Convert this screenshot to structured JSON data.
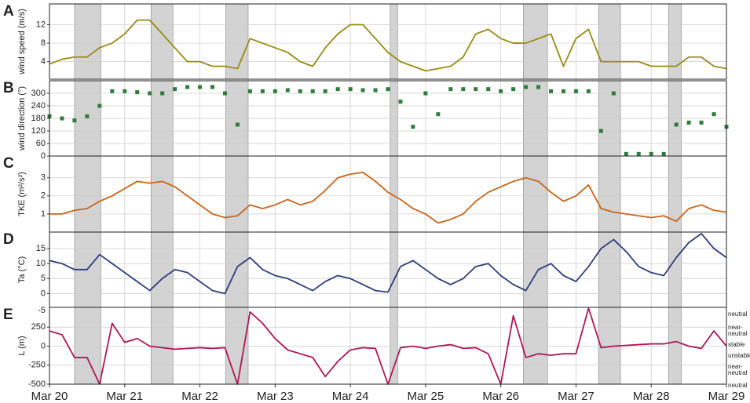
{
  "chart_data": [
    {
      "type": "line",
      "label": "A",
      "ylabel": "wind speed (m/s)",
      "color": "#9a8a14",
      "ylim": [
        0.2,
        16.5
      ],
      "yticks": [
        4,
        8,
        12
      ],
      "grid": true,
      "xlim": [
        0,
        216
      ],
      "shaded": [
        [
          8,
          16.4
        ],
        [
          32.4,
          39.4
        ],
        [
          56.2,
          63.4
        ],
        [
          108.7,
          111.1
        ],
        [
          151.2,
          158.9
        ],
        [
          175.2,
          182.2
        ],
        [
          197.5,
          201.6
        ]
      ],
      "x": [
        0,
        4,
        8,
        12,
        16,
        20,
        24,
        28,
        32,
        36,
        40,
        44,
        48,
        52,
        56,
        60,
        64,
        68,
        72,
        76,
        80,
        84,
        88,
        92,
        96,
        100,
        104,
        108,
        112,
        116,
        120,
        124,
        128,
        132,
        136,
        140,
        144,
        148,
        152,
        156,
        160,
        164,
        168,
        172,
        176,
        180,
        184,
        188,
        192,
        196,
        200,
        204,
        208,
        212,
        216
      ],
      "values": [
        3.5,
        4.5,
        5,
        5,
        7,
        8,
        10,
        13,
        13,
        10,
        7,
        4,
        4,
        3,
        3,
        2.5,
        9,
        8,
        7,
        6,
        4,
        3,
        7,
        10,
        12,
        12,
        9,
        6,
        4,
        3,
        2,
        2.5,
        3,
        5,
        10,
        11,
        9,
        8,
        8,
        9,
        10,
        3,
        9,
        11,
        4,
        4,
        4,
        4,
        3,
        3,
        3,
        5,
        5,
        3,
        2.5
      ]
    },
    {
      "type": "scatter",
      "label": "B",
      "ylabel": "wind direction (°)",
      "color": "#2e7d3a",
      "ylim": [
        0,
        360
      ],
      "yticks": [
        0,
        60,
        120,
        180,
        240,
        300
      ],
      "grid": true,
      "xlim": [
        0,
        216
      ],
      "shaded": [
        [
          8,
          16.4
        ],
        [
          32.4,
          39.4
        ],
        [
          56.2,
          63.4
        ],
        [
          108.7,
          111.1
        ],
        [
          151.2,
          158.9
        ],
        [
          175.2,
          182.2
        ],
        [
          197.5,
          201.6
        ]
      ],
      "x": [
        0,
        4,
        8,
        12,
        16,
        20,
        24,
        28,
        32,
        36,
        40,
        44,
        48,
        52,
        56,
        60,
        64,
        68,
        72,
        76,
        80,
        84,
        88,
        92,
        96,
        100,
        104,
        108,
        112,
        116,
        120,
        124,
        128,
        132,
        136,
        140,
        144,
        148,
        152,
        156,
        160,
        164,
        168,
        172,
        176,
        180,
        184,
        188,
        192,
        196,
        200,
        204,
        208,
        212,
        216
      ],
      "values": [
        190,
        180,
        170,
        190,
        240,
        310,
        310,
        305,
        300,
        300,
        320,
        330,
        330,
        330,
        300,
        150,
        310,
        310,
        310,
        315,
        310,
        310,
        310,
        320,
        320,
        315,
        315,
        320,
        260,
        140,
        300,
        200,
        320,
        320,
        320,
        320,
        310,
        320,
        330,
        330,
        310,
        310,
        310,
        310,
        120,
        300,
        10,
        10,
        10,
        10,
        150,
        160,
        160,
        200,
        140
      ]
    },
    {
      "type": "line",
      "label": "C",
      "ylabel": "TKE (m²/s²)",
      "color": "#c8651b",
      "ylim": [
        0,
        4.2
      ],
      "yticks": [
        1,
        2,
        3
      ],
      "grid": true,
      "xlim": [
        0,
        216
      ],
      "shaded": [
        [
          8,
          16.4
        ],
        [
          32.4,
          39.4
        ],
        [
          56.2,
          63.4
        ],
        [
          108.7,
          111.1
        ],
        [
          151.2,
          158.9
        ],
        [
          175.2,
          182.2
        ],
        [
          197.5,
          201.6
        ]
      ],
      "x": [
        0,
        4,
        8,
        12,
        16,
        20,
        24,
        28,
        32,
        36,
        40,
        44,
        48,
        52,
        56,
        60,
        64,
        68,
        72,
        76,
        80,
        84,
        88,
        92,
        96,
        100,
        104,
        108,
        112,
        116,
        120,
        124,
        128,
        132,
        136,
        140,
        144,
        148,
        152,
        156,
        160,
        164,
        168,
        172,
        176,
        180,
        184,
        188,
        192,
        196,
        200,
        204,
        208,
        212,
        216
      ],
      "values": [
        1,
        1,
        1.2,
        1.3,
        1.7,
        2,
        2.4,
        2.8,
        2.7,
        2.8,
        2.5,
        2,
        1.5,
        1,
        0.8,
        0.9,
        1.5,
        1.3,
        1.5,
        1.8,
        1.5,
        1.7,
        2.3,
        3,
        3.2,
        3.3,
        2.8,
        2.2,
        1.8,
        1.3,
        1,
        0.5,
        0.7,
        1,
        1.7,
        2.2,
        2.5,
        2.8,
        3,
        2.8,
        2.2,
        1.7,
        2,
        2.6,
        1.3,
        1.1,
        1,
        0.9,
        0.8,
        0.9,
        0.6,
        1.3,
        1.5,
        1.2,
        1.1
      ]
    },
    {
      "type": "line",
      "label": "D",
      "ylabel": "Ta (°C)",
      "color": "#2e3d7c",
      "ylim": [
        -4.6,
        20.5
      ],
      "yticks": [
        0,
        5,
        10,
        15
      ],
      "grid": true,
      "xlim": [
        0,
        216
      ],
      "shaded": [
        [
          8,
          16.4
        ],
        [
          32.4,
          39.4
        ],
        [
          56.2,
          63.4
        ],
        [
          108.7,
          111.1
        ],
        [
          151.2,
          158.9
        ],
        [
          175.2,
          182.2
        ],
        [
          197.5,
          201.6
        ]
      ],
      "x": [
        0,
        4,
        8,
        12,
        16,
        20,
        24,
        28,
        32,
        36,
        40,
        44,
        48,
        52,
        56,
        60,
        64,
        68,
        72,
        76,
        80,
        84,
        88,
        92,
        96,
        100,
        104,
        108,
        112,
        116,
        120,
        124,
        128,
        132,
        136,
        140,
        144,
        148,
        152,
        156,
        160,
        164,
        168,
        172,
        176,
        180,
        184,
        188,
        192,
        196,
        200,
        204,
        208,
        212,
        216
      ],
      "values": [
        11,
        10,
        8,
        8,
        13,
        10,
        7,
        4,
        1,
        5,
        8,
        7,
        4,
        1,
        0,
        9,
        12,
        8,
        6,
        5,
        3,
        1,
        4,
        6,
        5,
        3,
        1,
        0.5,
        9,
        11,
        8,
        5,
        3,
        5,
        9,
        10,
        6,
        3,
        1,
        8,
        10,
        6,
        4,
        9,
        15,
        18,
        14,
        9,
        7,
        6,
        12,
        17,
        20,
        15,
        12
      ]
    },
    {
      "type": "line",
      "label": "E",
      "ylabel": "L (m)",
      "color": "#b01657",
      "ylim": [
        -500,
        510
      ],
      "yticks": [
        -500,
        -250,
        0,
        250
      ],
      "ytop_label": "-5",
      "grid": true,
      "xlim": [
        0,
        216
      ],
      "xticks": [
        {
          "value": 0,
          "label": "Mar 20"
        },
        {
          "value": 24,
          "label": "Mar 21"
        },
        {
          "value": 48,
          "label": "Mar 22"
        },
        {
          "value": 72,
          "label": "Mar 23"
        },
        {
          "value": 96,
          "label": "Mar 24"
        },
        {
          "value": 120,
          "label": "Mar 25"
        },
        {
          "value": 144,
          "label": "Mar 26"
        },
        {
          "value": 168,
          "label": "Mar 27"
        },
        {
          "value": 192,
          "label": "Mar 28"
        },
        {
          "value": 216,
          "label": "Mar 29"
        }
      ],
      "regime_labels": [
        "neutral",
        "near-neutral",
        "stable",
        "unstable",
        "near-neutral",
        "neutral"
      ],
      "shaded": [
        [
          8,
          16.4
        ],
        [
          32.4,
          39.4
        ],
        [
          56.2,
          63.4
        ],
        [
          108.7,
          111.1
        ],
        [
          151.2,
          158.9
        ],
        [
          175.2,
          182.2
        ],
        [
          197.5,
          201.6
        ]
      ],
      "x": [
        0,
        4,
        8,
        12,
        16,
        20,
        24,
        28,
        32,
        36,
        40,
        44,
        48,
        52,
        56,
        60,
        64,
        68,
        72,
        76,
        80,
        84,
        88,
        92,
        96,
        100,
        104,
        108,
        112,
        116,
        120,
        124,
        128,
        132,
        136,
        140,
        144,
        148,
        152,
        156,
        160,
        164,
        168,
        172,
        176,
        180,
        184,
        188,
        192,
        196,
        200,
        204,
        208,
        212,
        216
      ],
      "values": [
        200,
        150,
        -150,
        -150,
        -500,
        300,
        50,
        100,
        0,
        -20,
        -40,
        -30,
        -20,
        -30,
        -20,
        -500,
        450,
        300,
        100,
        -50,
        -100,
        -150,
        -400,
        -200,
        -50,
        -20,
        -30,
        -500,
        -20,
        0,
        -30,
        0,
        20,
        -30,
        -20,
        -100,
        -500,
        400,
        -150,
        -100,
        -120,
        -100,
        -100,
        500,
        -20,
        0,
        10,
        20,
        30,
        30,
        60,
        0,
        -30,
        200,
        0
      ]
    }
  ]
}
